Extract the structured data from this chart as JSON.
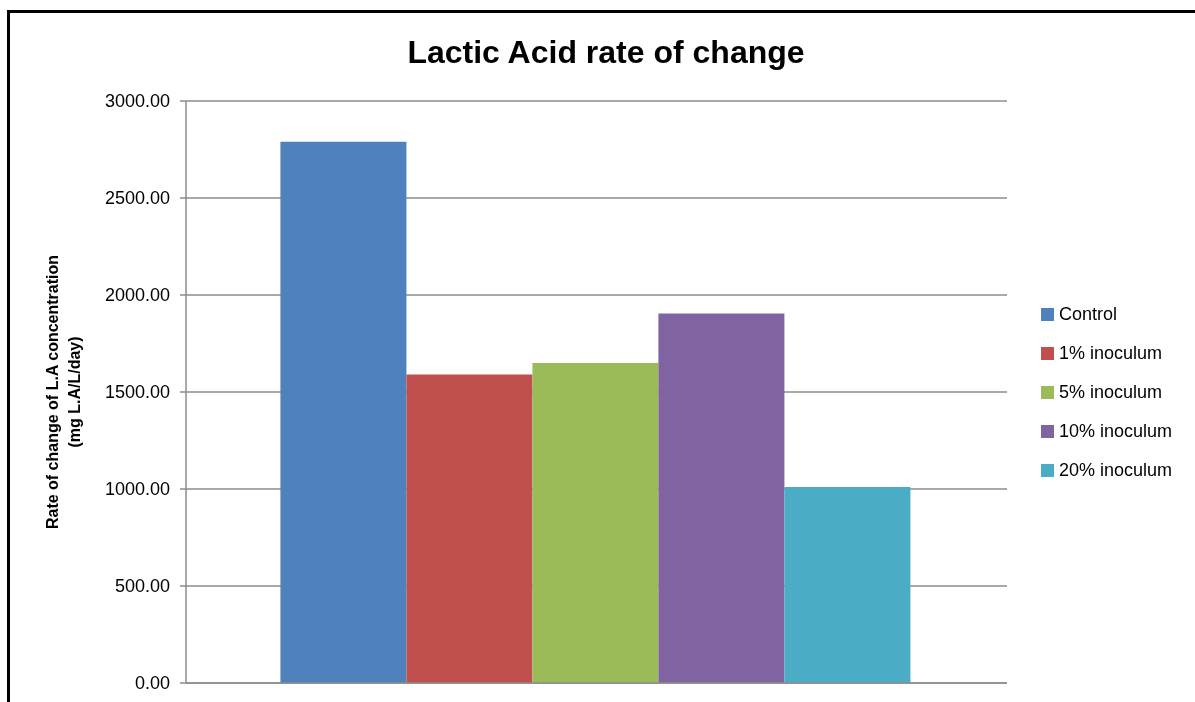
{
  "chart_data": {
    "type": "bar",
    "title": "Lactic Acid rate of change",
    "ylabel": "Rate of change of L.A concentration\n(mg L.A/L/day)",
    "categories": [
      null
    ],
    "series": [
      {
        "name": "Control",
        "color": "#4f81bd",
        "values": [
          2790
        ]
      },
      {
        "name": "1% inoculum",
        "color": "#c0504d",
        "values": [
          1590
        ]
      },
      {
        "name": "5% inoculum",
        "color": "#9bbb59",
        "values": [
          1650
        ]
      },
      {
        "name": "10% inoculum",
        "color": "#8064a2",
        "values": [
          1905
        ]
      },
      {
        "name": "20% inoculum",
        "color": "#4bacc6",
        "values": [
          1010
        ]
      }
    ],
    "ylim": [
      0,
      3000
    ],
    "yticks": [
      {
        "value": 0,
        "label": "0.00"
      },
      {
        "value": 500,
        "label": "500.00"
      },
      {
        "value": 1000,
        "label": "1000.00"
      },
      {
        "value": 1500,
        "label": "1500.00"
      },
      {
        "value": 2000,
        "label": "2000.00"
      },
      {
        "value": 2500,
        "label": "2500.00"
      },
      {
        "value": 3000,
        "label": "3000.00"
      }
    ],
    "grid": "y",
    "legend": "right"
  }
}
